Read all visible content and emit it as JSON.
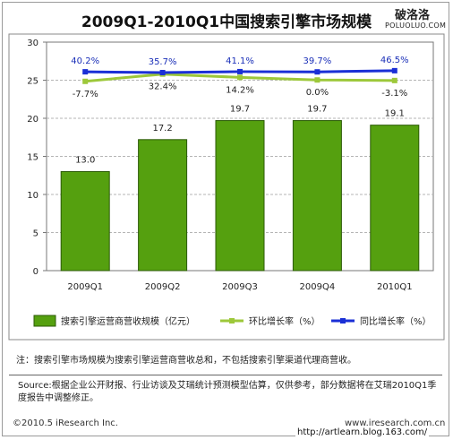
{
  "title": "2009Q1-2010Q1中国搜索引擎市场规模",
  "logo": {
    "cn": "破洛洛",
    "en": "POLUOLUO.COM"
  },
  "chart_data": {
    "type": "bar",
    "categories": [
      "2009Q1",
      "2009Q2",
      "2009Q3",
      "2009Q4",
      "2010Q1"
    ],
    "ylim": [
      0,
      30
    ],
    "yticks": [
      0,
      5,
      10,
      15,
      20,
      25,
      30
    ],
    "grid": true,
    "legend_position": "bottom",
    "series": [
      {
        "name": "搜索引擎运营商营收规模（亿元）",
        "kind": "bar",
        "color": "#55a00f",
        "values": [
          13.0,
          17.2,
          19.7,
          19.7,
          19.1
        ],
        "labels": [
          "13.0",
          "17.2",
          "19.7",
          "19.7",
          "19.1"
        ]
      },
      {
        "name": "环比增长率（%）",
        "kind": "line",
        "color": "#9dc83a",
        "values": [
          -7.7,
          32.4,
          14.2,
          0.0,
          -3.1
        ],
        "labels": [
          "-7.7%",
          "32.4%",
          "14.2%",
          "0.0%",
          "-3.1%"
        ]
      },
      {
        "name": "同比增长率（%）",
        "kind": "line",
        "color": "#1a2fd6",
        "values": [
          40.2,
          35.7,
          41.1,
          39.7,
          46.5
        ],
        "labels": [
          "40.2%",
          "35.7%",
          "41.1%",
          "39.7%",
          "46.5%"
        ]
      }
    ]
  },
  "note": "注：搜索引擎市场规模为搜索引擎运营商营收总和，不包括搜索引擎渠道代理商营收。",
  "source": "Source:根据企业公开财报、行业访谈及艾瑞统计预测模型估算，仅供参考，部分数据将在艾瑞2010Q1季度报告中调整修正。",
  "copyright": "©2010.5 iResearch Inc.",
  "website": "www.iresearch.com.cn",
  "blog_url": "http://artlearn.blog.163.com/"
}
